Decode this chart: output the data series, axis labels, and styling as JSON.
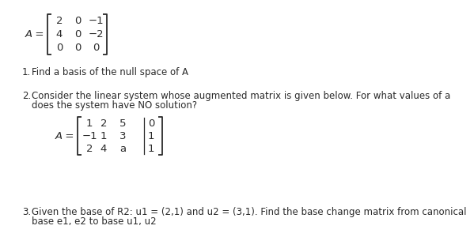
{
  "bg_color": "#ffffff",
  "text_color": "#2a2a2a",
  "matrix1_label": "A =",
  "matrix1_rows": [
    [
      "2",
      "0",
      "−1"
    ],
    [
      "4",
      "0",
      "−2"
    ],
    [
      "0",
      "0",
      "0"
    ]
  ],
  "q1_number": "1.",
  "q1_text": "Find a basis of the null space of A",
  "q2_number": "2.",
  "q2_text1": "Consider the linear system whose augmented matrix is given below. For what values of a",
  "q2_text2": "does the system have NO solution?",
  "matrix2_label": "A =",
  "matrix2_rows": [
    [
      "1",
      "2",
      "5",
      "0"
    ],
    [
      "−1",
      "1",
      "3",
      "1"
    ],
    [
      "2",
      "4",
      "a",
      "1"
    ]
  ],
  "q3_number": "3.",
  "q3_text1": "Given the base of R2: u1 = (2,1) and u2 = (3,1). Find the base change matrix from canonical",
  "q3_text2": "base e1, e2 to base u1, u2",
  "fs_body": 8.5,
  "fs_matrix": 9.5
}
